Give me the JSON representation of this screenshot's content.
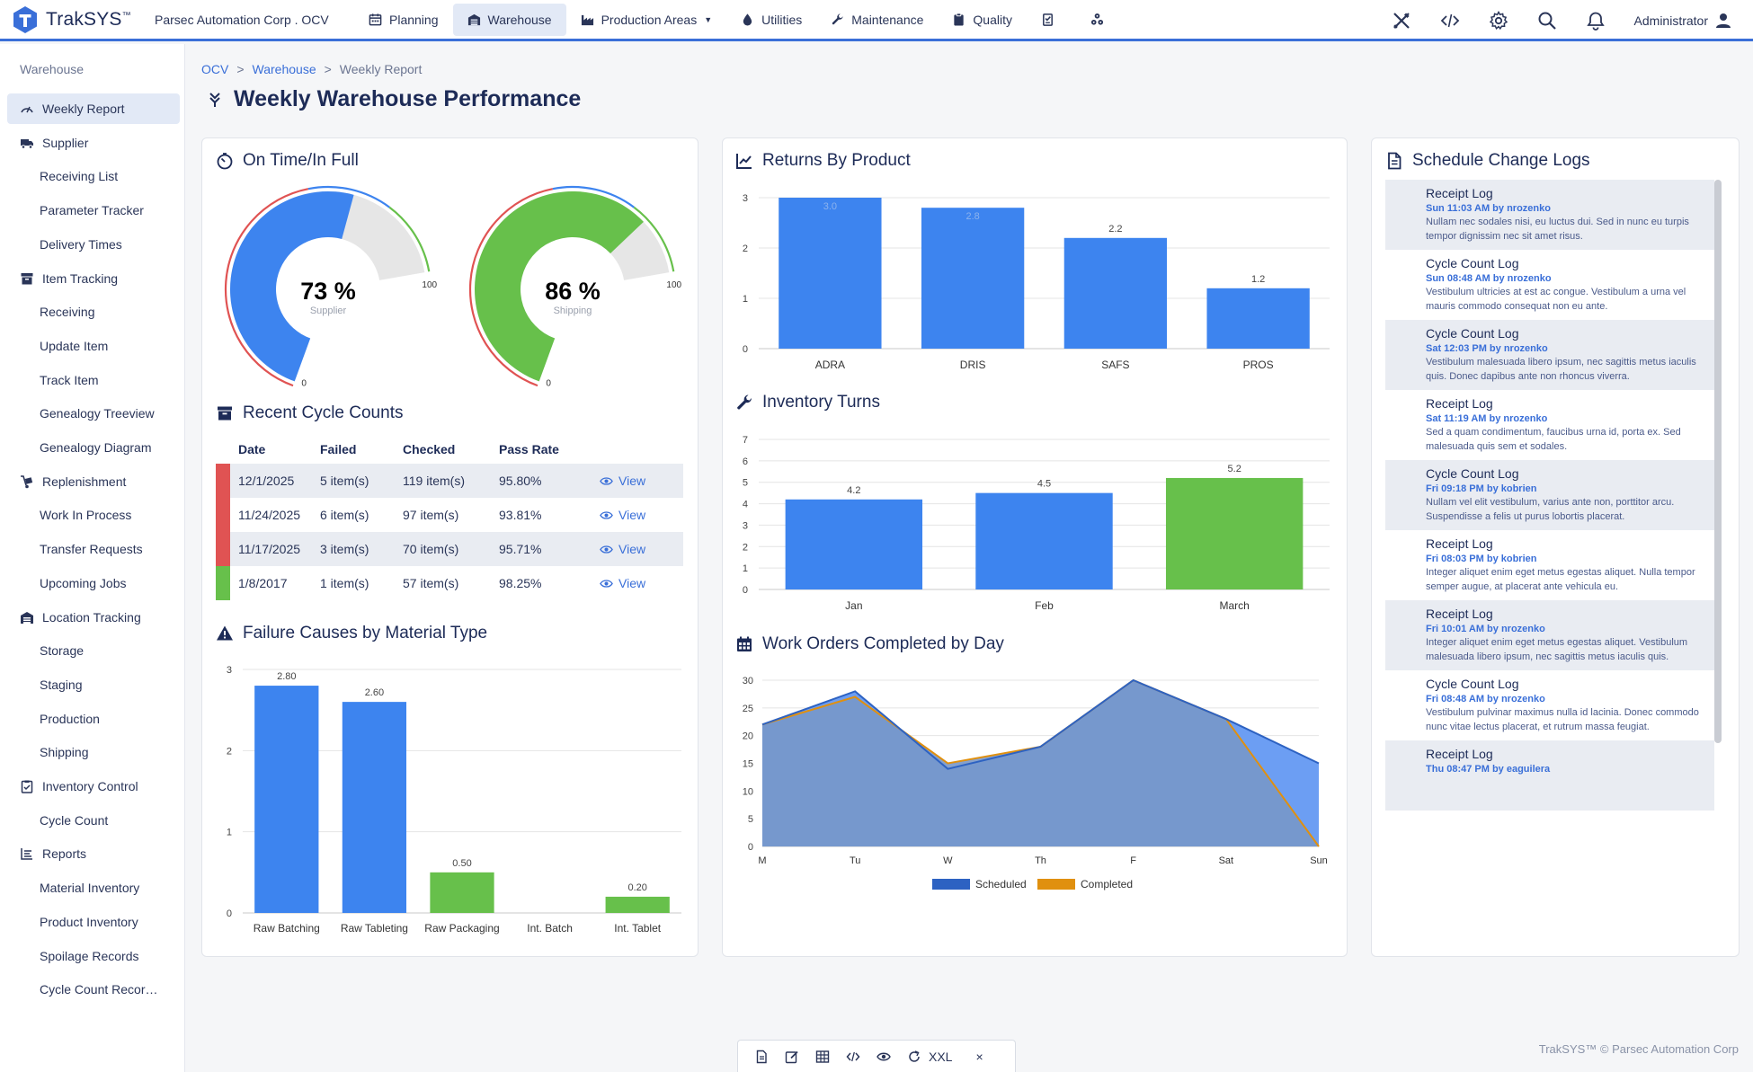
{
  "app": {
    "name": "TrakSYS",
    "tm": "™",
    "company": "Parsec Automation Corp . OCV",
    "user": "Administrator"
  },
  "nav": [
    {
      "label": "Planning",
      "icon": "calendar-icon"
    },
    {
      "label": "Warehouse",
      "icon": "warehouse-icon",
      "active": true
    },
    {
      "label": "Production Areas",
      "icon": "factory-icon",
      "dropdown": true
    },
    {
      "label": "Utilities",
      "icon": "droplet-icon"
    },
    {
      "label": "Maintenance",
      "icon": "wrench-icon"
    },
    {
      "label": "Quality",
      "icon": "clipboard-icon"
    }
  ],
  "sidebar": {
    "header": "Warehouse",
    "items": [
      {
        "label": "Weekly Report",
        "type": "parent",
        "icon": "gauge-icon",
        "active": true
      },
      {
        "label": "Supplier",
        "type": "parent",
        "icon": "truck-icon"
      },
      {
        "label": "Receiving List",
        "type": "child"
      },
      {
        "label": "Parameter Tracker",
        "type": "child"
      },
      {
        "label": "Delivery Times",
        "type": "child"
      },
      {
        "label": "Item Tracking",
        "type": "parent",
        "icon": "archive-icon"
      },
      {
        "label": "Receiving",
        "type": "child"
      },
      {
        "label": "Update Item",
        "type": "child"
      },
      {
        "label": "Track Item",
        "type": "child"
      },
      {
        "label": "Genealogy Treeview",
        "type": "child"
      },
      {
        "label": "Genealogy Diagram",
        "type": "child"
      },
      {
        "label": "Replenishment",
        "type": "parent",
        "icon": "dolly-icon"
      },
      {
        "label": "Work In Process",
        "type": "child"
      },
      {
        "label": "Transfer Requests",
        "type": "child"
      },
      {
        "label": "Upcoming Jobs",
        "type": "child"
      },
      {
        "label": "Location Tracking",
        "type": "parent",
        "icon": "warehouse-icon"
      },
      {
        "label": "Storage",
        "type": "child"
      },
      {
        "label": "Staging",
        "type": "child"
      },
      {
        "label": "Production",
        "type": "child"
      },
      {
        "label": "Shipping",
        "type": "child"
      },
      {
        "label": "Inventory Control",
        "type": "parent",
        "icon": "clipboard-check-icon"
      },
      {
        "label": "Cycle Count",
        "type": "child"
      },
      {
        "label": "Reports",
        "type": "parent",
        "icon": "list-icon"
      },
      {
        "label": "Material Inventory",
        "type": "child"
      },
      {
        "label": "Product Inventory",
        "type": "child"
      },
      {
        "label": "Spoilage Records",
        "type": "child"
      },
      {
        "label": "Cycle Count Recor…",
        "type": "child"
      }
    ]
  },
  "breadcrumb": [
    "OCV",
    "Warehouse",
    "Weekly Report"
  ],
  "page_title": "Weekly Warehouse Performance",
  "otif": {
    "title": "On Time/In Full",
    "gauges": [
      {
        "value": 73,
        "text": "73 %",
        "label": "Supplier",
        "min": "0",
        "max": "100",
        "color": "#3d84ef"
      },
      {
        "value": 86,
        "text": "86 %",
        "label": "Shipping",
        "min": "0",
        "max": "100",
        "color": "#67c04b"
      }
    ]
  },
  "cycle_counts": {
    "title": "Recent Cycle Counts",
    "columns": [
      "Date",
      "Failed",
      "Checked",
      "Pass Rate"
    ],
    "rows": [
      {
        "date": "12/1/2025",
        "failed": "5 item(s)",
        "checked": "119 item(s)",
        "rate": "95.80%",
        "action": "View",
        "status_color": "#e05353"
      },
      {
        "date": "11/24/2025",
        "failed": "6 item(s)",
        "checked": "97 item(s)",
        "rate": "93.81%",
        "action": "View",
        "status_color": "#e05353"
      },
      {
        "date": "11/17/2025",
        "failed": "3 item(s)",
        "checked": "70 item(s)",
        "rate": "95.71%",
        "action": "View",
        "status_color": "#e05353"
      },
      {
        "date": "1/8/2017",
        "failed": "1 item(s)",
        "checked": "57 item(s)",
        "rate": "98.25%",
        "action": "View",
        "status_color": "#67c04b"
      }
    ]
  },
  "colors": {
    "blue": "#3d84ef",
    "green": "#67c04b",
    "red": "#e05353",
    "accent": "#3a6fd8"
  },
  "charts": {
    "failure": {
      "title": "Failure Causes by Material Type"
    },
    "returns": {
      "title": "Returns By Product"
    },
    "turns": {
      "title": "Inventory Turns"
    },
    "workorders": {
      "title": "Work Orders Completed by Day"
    }
  },
  "chart_data": [
    {
      "type": "bar",
      "categories": [
        "Raw Batching",
        "Raw Tableting",
        "Raw Packaging",
        "Int. Batch",
        "Int. Tablet"
      ],
      "values": [
        2.8,
        2.6,
        0.5,
        0,
        0.2
      ],
      "labels": [
        "2.80",
        "2.60",
        "0.50",
        "",
        "0.20"
      ],
      "colors": [
        "#3d84ef",
        "#3d84ef",
        "#67c04b",
        "#3d84ef",
        "#67c04b"
      ],
      "title": "Failure Causes by Material Type",
      "ylim": [
        0,
        3
      ],
      "yticks": [
        0,
        1,
        2,
        3
      ],
      "grid": true
    },
    {
      "type": "bar",
      "categories": [
        "ADRA",
        "DRIS",
        "SAFS",
        "PROS"
      ],
      "values": [
        3.0,
        2.8,
        2.2,
        1.2
      ],
      "labels": [
        "3.0",
        "2.8",
        "2.2",
        "1.2"
      ],
      "colors": [
        "#3d84ef",
        "#3d84ef",
        "#3d84ef",
        "#3d84ef"
      ],
      "title": "Returns By Product",
      "ylim": [
        0,
        3
      ],
      "yticks": [
        0,
        1,
        2,
        3
      ],
      "grid": true
    },
    {
      "type": "bar",
      "categories": [
        "Jan",
        "Feb",
        "March"
      ],
      "values": [
        4.2,
        4.5,
        5.2
      ],
      "labels": [
        "4.2",
        "4.5",
        "5.2"
      ],
      "colors": [
        "#3d84ef",
        "#3d84ef",
        "#67c04b"
      ],
      "title": "Inventory Turns",
      "ylim": [
        0,
        7
      ],
      "yticks": [
        0,
        1,
        2,
        3,
        4,
        5,
        6,
        7
      ],
      "grid": true
    },
    {
      "type": "area",
      "categories": [
        "M",
        "Tu",
        "W",
        "Th",
        "F",
        "Sat",
        "Sun"
      ],
      "series": [
        {
          "name": "Scheduled",
          "values": [
            22,
            28,
            14,
            18,
            30,
            23,
            15
          ],
          "color": "#2d62c2"
        },
        {
          "name": "Completed",
          "values": [
            22,
            27,
            15,
            18,
            30,
            23,
            0
          ],
          "color": "#e0900f"
        }
      ],
      "title": "Work Orders Completed by Day",
      "ylim": [
        0,
        30
      ],
      "yticks": [
        0,
        5,
        10,
        15,
        20,
        25,
        30
      ],
      "legend": "bottom",
      "grid": true
    }
  ],
  "logs": {
    "title": "Schedule Change Logs",
    "items": [
      {
        "title": "Receipt Log",
        "meta": "Sun 11:03 AM by nrozenko",
        "body": "Nullam nec sodales nisi, eu luctus dui. Sed in nunc eu turpis tempor dignissim nec sit amet risus."
      },
      {
        "title": "Cycle Count Log",
        "meta": "Sun 08:48 AM by nrozenko",
        "body": "Vestibulum ultricies at est ac congue. Vestibulum a urna vel mauris commodo consequat non eu ante."
      },
      {
        "title": "Cycle Count Log",
        "meta": "Sat 12:03 PM by nrozenko",
        "body": "Vestibulum malesuada libero ipsum, nec sagittis metus iaculis quis. Donec dapibus ante non rhoncus viverra."
      },
      {
        "title": "Receipt Log",
        "meta": "Sat 11:19 AM by nrozenko",
        "body": "Sed a quam condimentum, faucibus urna id, porta ex. Sed malesuada quis sem et sodales."
      },
      {
        "title": "Cycle Count Log",
        "meta": "Fri 09:18 PM by kobrien",
        "body": "Nullam vel elit vestibulum, varius ante non, porttitor arcu. Suspendisse a felis ut purus lobortis placerat."
      },
      {
        "title": "Receipt Log",
        "meta": "Fri 08:03 PM by kobrien",
        "body": "Integer aliquet enim eget metus egestas aliquet. Nulla tempor semper augue, at placerat ante vehicula eu."
      },
      {
        "title": "Receipt Log",
        "meta": "Fri 10:01 AM by nrozenko",
        "body": "Integer aliquet enim eget metus egestas aliquet. Vestibulum malesuada libero ipsum, nec sagittis metus iaculis quis."
      },
      {
        "title": "Cycle Count Log",
        "meta": "Fri 08:48 AM by nrozenko",
        "body": "Vestibulum pulvinar maximus nulla id lacinia. Donec commodo nunc vitae lectus placerat, et rutrum massa feugiat."
      },
      {
        "title": "Receipt Log",
        "meta": "Thu 08:47 PM by eaguilera",
        "body": ""
      }
    ]
  },
  "toolbar": {
    "size": "XXL",
    "close": "×"
  },
  "footer": "TrakSYS™ © Parsec Automation Corp"
}
